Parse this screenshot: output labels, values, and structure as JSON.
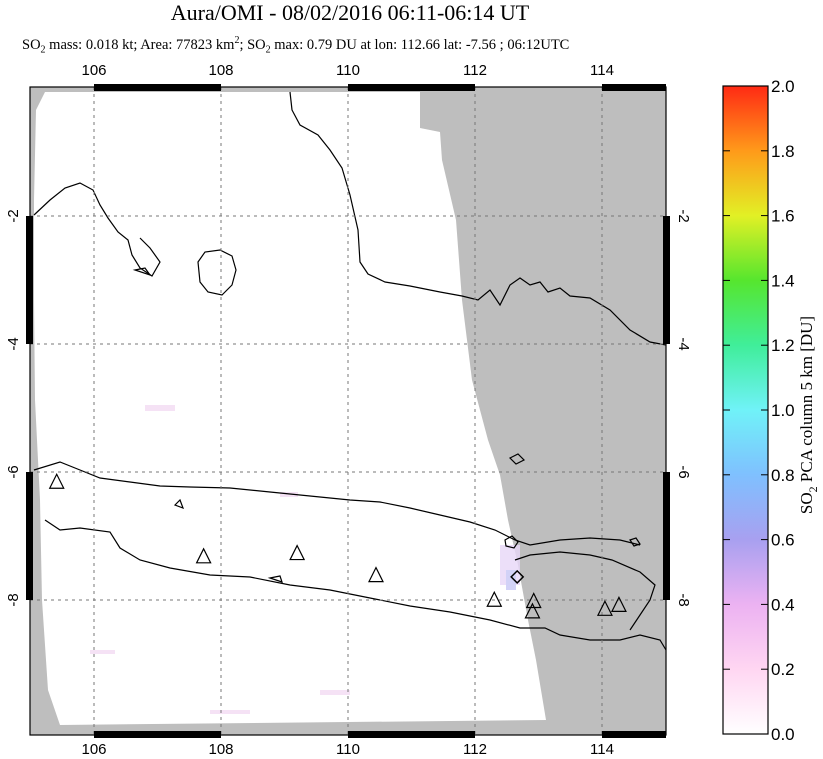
{
  "title": "Aura/OMI - 08/02/2016 06:11-06:14 UT",
  "subtitle": {
    "so2_mass_prefix": "SO",
    "so2_sub": "2",
    "mass_text": " mass: 0.018 kt; Area: 77823 km",
    "area_sup": "2",
    "max_prefix": "; SO",
    "max_sub": "2",
    "max_text": " max: 0.79 DU at lon: 112.66 lat: -7.56 ; 06:12UTC"
  },
  "map": {
    "lon_range": [
      105,
      115
    ],
    "lat_range": [
      -10,
      0
    ],
    "lon_ticks": [
      "106",
      "108",
      "110",
      "112",
      "114"
    ],
    "lat_ticks": [
      "-2",
      "-4",
      "-6",
      "-8"
    ],
    "lat_ticks_right": [
      "-2",
      "-4",
      "-6",
      "-8"
    ],
    "grid": "dashed",
    "no_data_color": "#bebebe",
    "volcanoes": [
      {
        "lon": 105.42,
        "lat": -6.1
      },
      {
        "lon": 107.73,
        "lat": -7.25
      },
      {
        "lon": 109.2,
        "lat": -7.2
      },
      {
        "lon": 110.44,
        "lat": -7.54
      },
      {
        "lon": 112.3,
        "lat": -7.92
      },
      {
        "lon": 112.92,
        "lat": -7.94
      },
      {
        "lon": 112.9,
        "lat": -8.1
      },
      {
        "lon": 114.04,
        "lat": -8.06
      },
      {
        "lon": 114.26,
        "lat": -8.0
      }
    ],
    "max_marker": {
      "lon": 112.66,
      "lat": -7.56
    }
  },
  "colorbar": {
    "label": "SO2 PCA column 5 km [DU]",
    "label_prefix": "SO",
    "label_sub": "2",
    "label_rest": " PCA column 5 km [DU]",
    "range": [
      0,
      2
    ],
    "ticks": [
      "0.0",
      "0.2",
      "0.4",
      "0.6",
      "0.8",
      "1.0",
      "1.2",
      "1.4",
      "1.6",
      "1.8",
      "2.0"
    ]
  }
}
